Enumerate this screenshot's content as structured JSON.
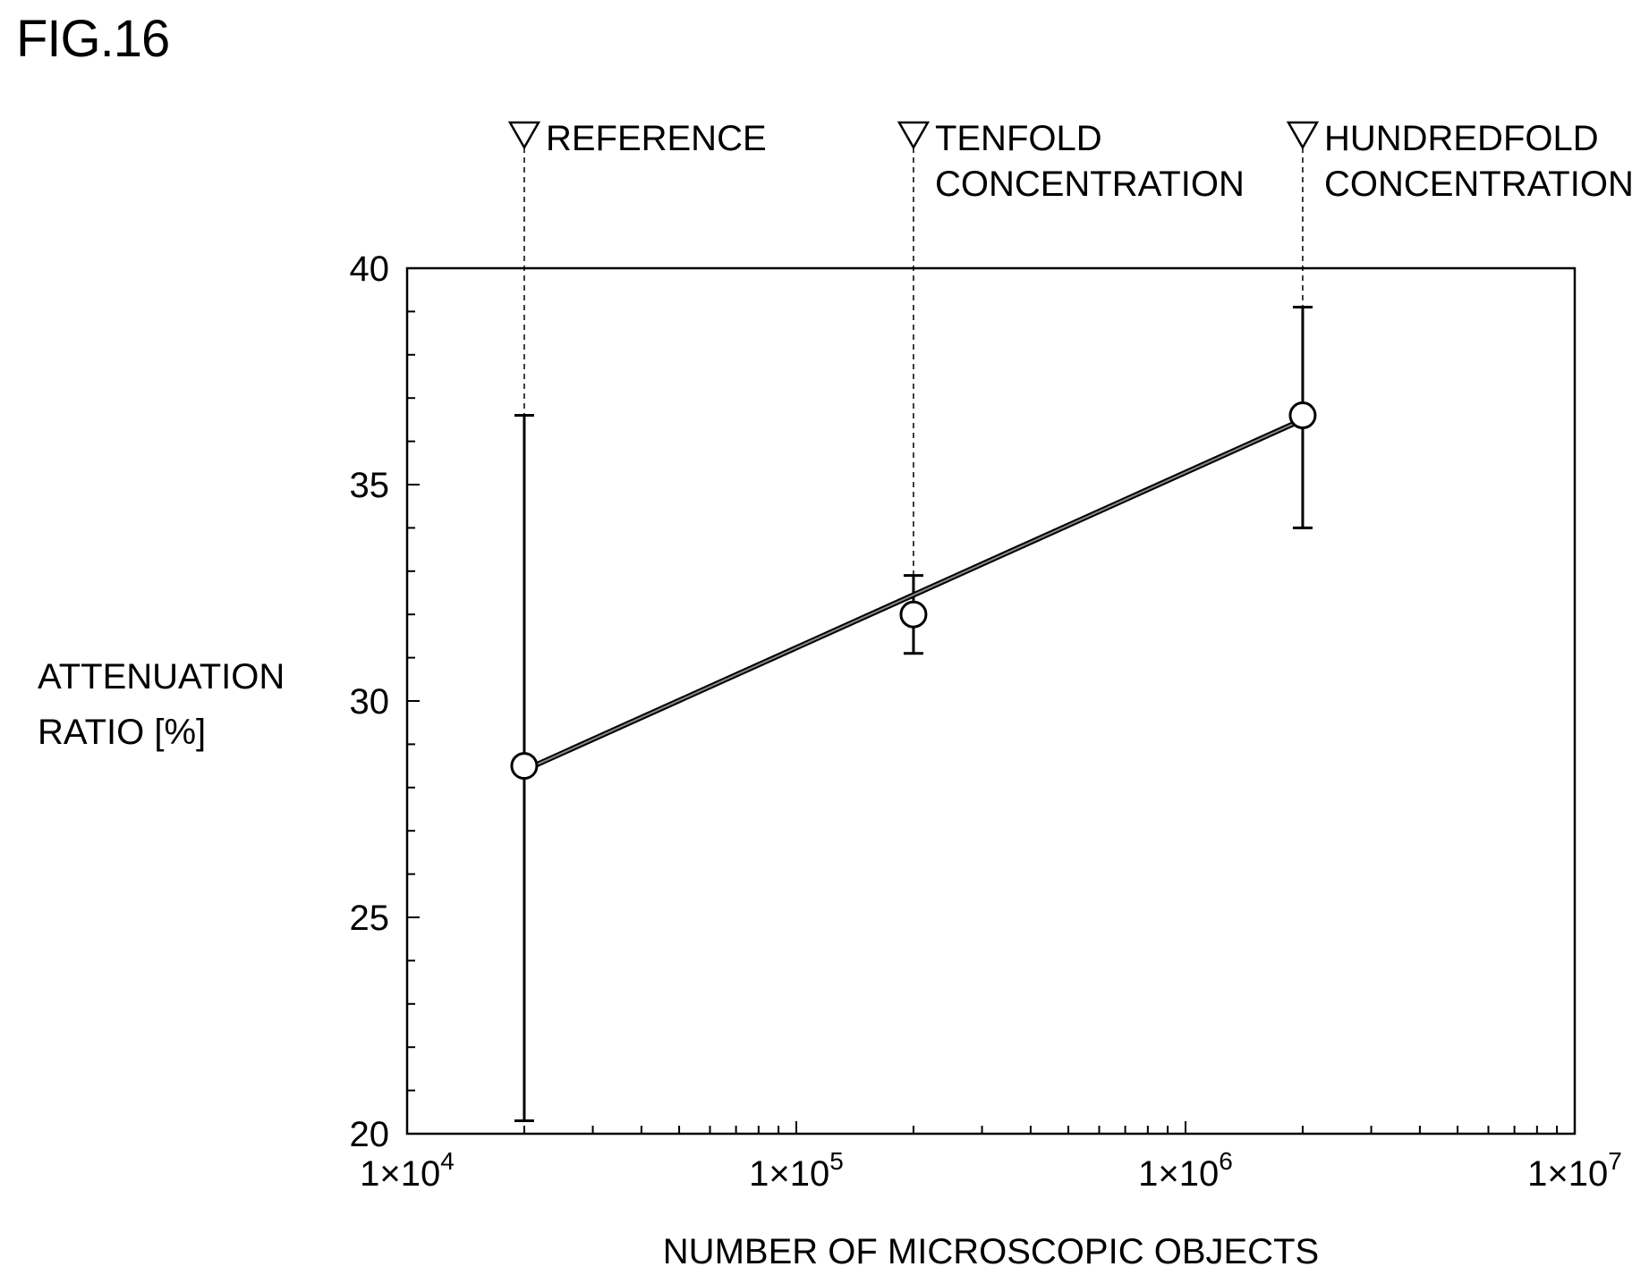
{
  "figure": {
    "title": "FIG.16"
  },
  "chart_data": {
    "type": "line",
    "title": "",
    "xlabel": "NUMBER OF MICROSCOPIC OBJECTS",
    "ylabel_lines": [
      "ATTENUATION",
      "RATIO [%]"
    ],
    "x_scale": "log",
    "xlim": [
      10000,
      10000000
    ],
    "ylim": [
      20,
      40
    ],
    "x_ticks": [
      {
        "value": 10000,
        "base": "1×10",
        "exp": "4"
      },
      {
        "value": 100000,
        "base": "1×10",
        "exp": "5"
      },
      {
        "value": 1000000,
        "base": "1×10",
        "exp": "6"
      },
      {
        "value": 10000000,
        "base": "1×10",
        "exp": "7"
      }
    ],
    "y_ticks": [
      20,
      25,
      30,
      35,
      40
    ],
    "series": [
      {
        "points": [
          {
            "x": 20000,
            "y": 28.5,
            "err_low": 20.3,
            "err_high": 36.6
          },
          {
            "x": 200000,
            "y": 32.0,
            "err_low": 31.1,
            "err_high": 32.9
          },
          {
            "x": 2000000,
            "y": 36.6,
            "err_low": 34.0,
            "err_high": 39.1
          }
        ],
        "fit_line": {
          "x": [
            20000,
            2000000
          ],
          "y": [
            28.4,
            36.5
          ]
        }
      }
    ],
    "annotations": [
      {
        "x": 20000,
        "lines": [
          "REFERENCE"
        ]
      },
      {
        "x": 200000,
        "lines": [
          "TENFOLD",
          "CONCENTRATION"
        ]
      },
      {
        "x": 2000000,
        "lines": [
          "HUNDREDFOLD",
          "CONCENTRATION"
        ]
      }
    ],
    "grid": false,
    "legend": "none"
  }
}
